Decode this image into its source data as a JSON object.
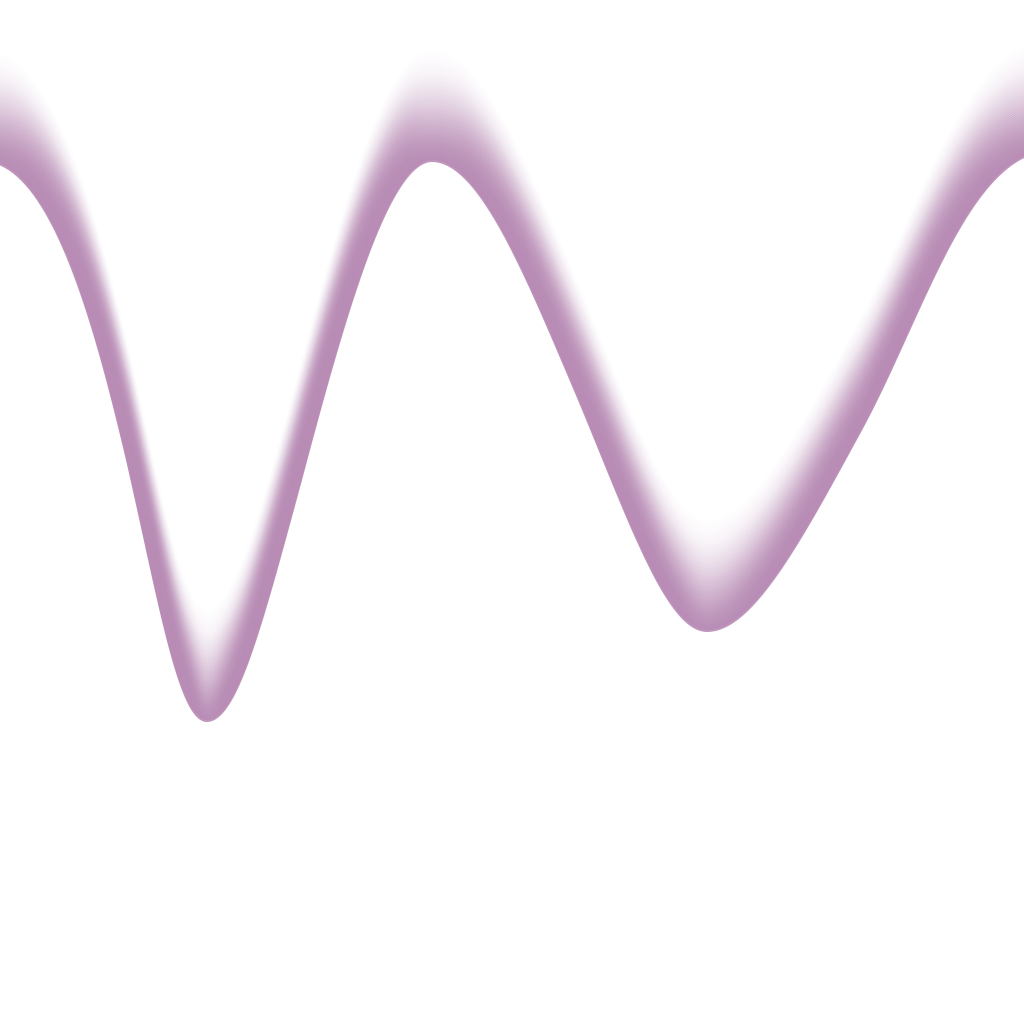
{
  "colors": {
    "band": "#b88cb5",
    "background": "#ffffff"
  },
  "shape": "wavy-gradient-band"
}
